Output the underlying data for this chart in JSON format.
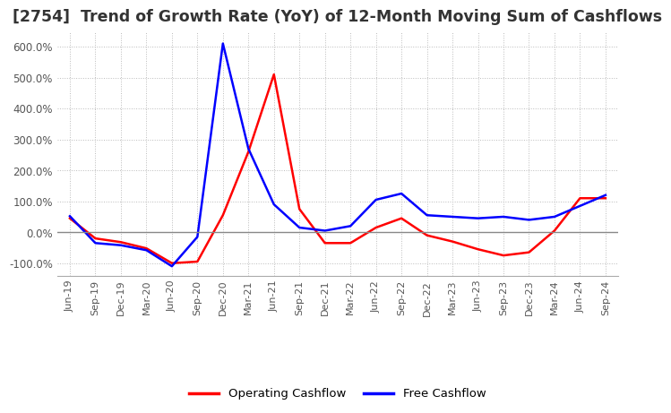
{
  "title": "[2754]  Trend of Growth Rate (YoY) of 12-Month Moving Sum of Cashflows",
  "title_fontsize": 12.5,
  "ylim": [
    -140,
    650
  ],
  "yticks": [
    -100,
    0,
    100,
    200,
    300,
    400,
    500,
    600
  ],
  "ytick_labels": [
    "-100.0%",
    "0.0%",
    "100.0%",
    "200.0%",
    "300.0%",
    "400.0%",
    "500.0%",
    "600.0%"
  ],
  "legend_labels": [
    "Operating Cashflow",
    "Free Cashflow"
  ],
  "legend_colors": [
    "red",
    "blue"
  ],
  "x_labels": [
    "Jun-19",
    "Sep-19",
    "Dec-19",
    "Mar-20",
    "Jun-20",
    "Sep-20",
    "Dec-20",
    "Mar-21",
    "Jun-21",
    "Sep-21",
    "Dec-21",
    "Mar-22",
    "Jun-22",
    "Sep-22",
    "Dec-22",
    "Mar-23",
    "Jun-23",
    "Sep-23",
    "Dec-23",
    "Mar-24",
    "Jun-24",
    "Sep-24"
  ],
  "operating_y": [
    45,
    -20,
    -32,
    -52,
    -100,
    -95,
    55,
    260,
    510,
    75,
    -35,
    -35,
    15,
    45,
    -10,
    -30,
    -55,
    -75,
    -65,
    5,
    110,
    110
  ],
  "free_y": [
    52,
    -35,
    -42,
    -58,
    -110,
    -15,
    610,
    270,
    90,
    15,
    5,
    20,
    105,
    125,
    55,
    50,
    45,
    50,
    40,
    50,
    85,
    120
  ],
  "grid_color": "#bbbbbb",
  "background_color": "#ffffff",
  "line_width": 1.8
}
